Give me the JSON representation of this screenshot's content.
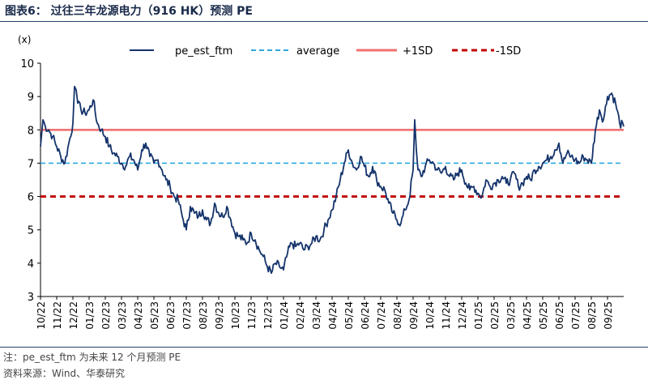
{
  "title": "图表6： 过往三年龙源电力（916 HK）预测 PE",
  "footnote": "注：pe_est_ftm 为未来 12 个月预测 PE",
  "source": "资料来源：Wind、华泰研究",
  "chart_data": {
    "type": "line",
    "ylabel": "(x)",
    "ylim": [
      3,
      10
    ],
    "yticks": [
      "3",
      "4",
      "5",
      "6",
      "7",
      "8",
      "9",
      "10"
    ],
    "xticks": [
      "10/22",
      "11/22",
      "12/22",
      "01/23",
      "02/23",
      "03/23",
      "04/23",
      "05/23",
      "06/23",
      "07/23",
      "08/23",
      "09/23",
      "10/23",
      "11/23",
      "12/23",
      "01/24",
      "02/24",
      "03/24",
      "04/24",
      "05/24",
      "06/24",
      "07/24",
      "08/24",
      "09/24",
      "10/24",
      "11/24",
      "12/24",
      "01/25",
      "02/25",
      "03/25",
      "04/25",
      "05/25",
      "06/25",
      "07/25",
      "08/25",
      "09/25"
    ],
    "legend": [
      "pe_est_ftm",
      "average",
      "+1SD",
      "-1SD"
    ],
    "colors": {
      "series": "#14336b",
      "average": "#2aa9de",
      "plus_sd": "#f07272",
      "minus_sd": "#c00000"
    },
    "reference_lines": {
      "average": 7.0,
      "plus_1sd": 8.0,
      "minus_1sd": 6.0
    },
    "series": [
      {
        "name": "pe_est_ftm",
        "x": [
          0,
          0.15,
          0.3,
          0.5,
          0.75,
          1.0,
          1.25,
          1.5,
          1.75,
          2.0,
          2.1,
          2.2,
          2.3,
          2.5,
          2.75,
          3.0,
          3.25,
          3.5,
          3.75,
          4.0,
          4.25,
          4.5,
          4.75,
          5.0,
          5.25,
          5.5,
          5.75,
          6.0,
          6.25,
          6.5,
          6.75,
          7.0,
          7.25,
          7.5,
          7.75,
          8.0,
          8.25,
          8.5,
          8.75,
          9.0,
          9.25,
          9.5,
          9.75,
          10.0,
          10.25,
          10.5,
          10.75,
          11.0,
          11.25,
          11.5,
          11.75,
          12.0,
          12.25,
          12.5,
          12.75,
          13.0,
          13.25,
          13.5,
          13.75,
          14.0,
          14.25,
          14.5,
          14.75,
          15.0,
          15.25,
          15.5,
          15.75,
          16.0,
          16.25,
          16.5,
          16.75,
          17.0,
          17.25,
          17.5,
          17.75,
          18.0,
          18.25,
          18.5,
          18.75,
          19.0,
          19.25,
          19.5,
          19.75,
          20.0,
          20.25,
          20.5,
          20.75,
          21.0,
          21.25,
          21.5,
          21.75,
          22.0,
          22.25,
          22.5,
          22.75,
          23.0,
          23.1,
          23.2,
          23.3,
          23.5,
          23.75,
          24.0,
          24.25,
          24.5,
          24.75,
          25.0,
          25.25,
          25.5,
          25.75,
          26.0,
          26.25,
          26.5,
          26.75,
          27.0,
          27.25,
          27.5,
          27.75,
          28.0,
          28.25,
          28.5,
          28.75,
          29.0,
          29.25,
          29.5,
          29.75,
          30.0,
          30.25,
          30.5,
          30.75,
          31.0,
          31.25,
          31.5,
          31.75,
          32.0,
          32.25,
          32.5,
          32.75,
          33.0,
          33.25,
          33.5,
          33.75,
          34.0,
          34.25,
          34.5,
          34.75,
          35.0,
          35.25,
          35.5,
          35.75,
          36.0
        ],
        "values": [
          7.5,
          8.3,
          8.1,
          8.0,
          7.8,
          7.5,
          7.2,
          7.0,
          7.6,
          8.2,
          9.3,
          9.2,
          8.8,
          8.6,
          8.5,
          8.6,
          8.9,
          8.2,
          8.0,
          7.8,
          7.5,
          7.3,
          7.2,
          7.0,
          6.9,
          7.2,
          7.1,
          6.8,
          7.4,
          7.6,
          7.2,
          7.0,
          7.1,
          6.8,
          6.5,
          6.3,
          6.0,
          5.9,
          5.4,
          5.0,
          5.7,
          5.5,
          5.4,
          5.6,
          5.3,
          5.2,
          5.8,
          5.5,
          5.4,
          5.7,
          5.3,
          4.9,
          4.8,
          4.7,
          4.6,
          4.9,
          4.7,
          4.4,
          4.2,
          3.9,
          3.7,
          4.0,
          3.9,
          3.8,
          4.3,
          4.6,
          4.5,
          4.6,
          4.4,
          4.5,
          4.6,
          4.8,
          4.7,
          5.0,
          5.3,
          5.6,
          6.0,
          6.5,
          7.0,
          7.4,
          7.0,
          6.8,
          7.2,
          6.9,
          6.6,
          6.9,
          6.5,
          6.3,
          6.2,
          5.8,
          5.5,
          5.3,
          5.2,
          5.6,
          5.9,
          6.8,
          8.3,
          7.4,
          6.8,
          6.6,
          6.9,
          7.1,
          7.0,
          6.8,
          6.7,
          6.9,
          6.6,
          6.5,
          6.7,
          6.8,
          6.4,
          6.2,
          6.3,
          6.1,
          6.0,
          6.5,
          6.3,
          6.4,
          6.5,
          6.6,
          6.4,
          6.5,
          6.7,
          6.3,
          6.4,
          6.6,
          6.5,
          6.8,
          6.9,
          7.0,
          7.1,
          7.2,
          7.4,
          7.6,
          7.0,
          7.3,
          7.2,
          7.1,
          7.0,
          7.2,
          7.1,
          7.0,
          8.0,
          8.6,
          8.3,
          9.0,
          9.1,
          8.8,
          8.2,
          8.1
        ]
      }
    ]
  }
}
